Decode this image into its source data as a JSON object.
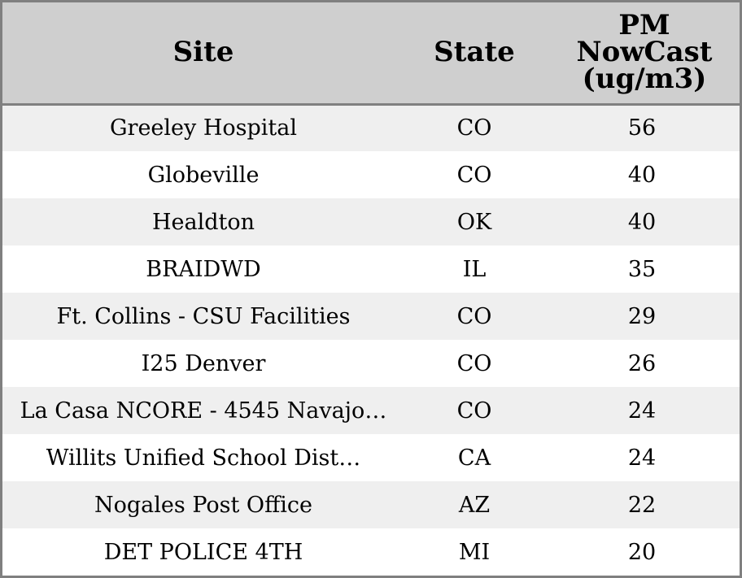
{
  "table": {
    "headers": {
      "site": "Site",
      "state": "State",
      "pm_line1": "PM",
      "pm_line2": "NowCast",
      "pm_line3": "(ug/m3)"
    },
    "rows": [
      {
        "site": "Greeley Hospital",
        "state": "CO",
        "pm": "56"
      },
      {
        "site": "Globeville",
        "state": "CO",
        "pm": "40"
      },
      {
        "site": "Healdton",
        "state": "OK",
        "pm": "40"
      },
      {
        "site": "BRAIDWD",
        "state": "IL",
        "pm": "35"
      },
      {
        "site": "Ft. Collins - CSU Facilities",
        "state": "CO",
        "pm": "29"
      },
      {
        "site": "I25 Denver",
        "state": "CO",
        "pm": "26"
      },
      {
        "site": "La Casa NCORE - 4545 Navajo…",
        "state": "CO",
        "pm": "24"
      },
      {
        "site": "Willits Unified School Dist…",
        "state": "CA",
        "pm": "24"
      },
      {
        "site": "Nogales Post Office",
        "state": "AZ",
        "pm": "22"
      },
      {
        "site": "DET POLICE 4TH",
        "state": "MI",
        "pm": "20"
      }
    ]
  },
  "colors": {
    "header_bg": "#cfcfcf",
    "row_alt_bg": "#efefef",
    "row_bg": "#ffffff",
    "border": "#808080"
  }
}
